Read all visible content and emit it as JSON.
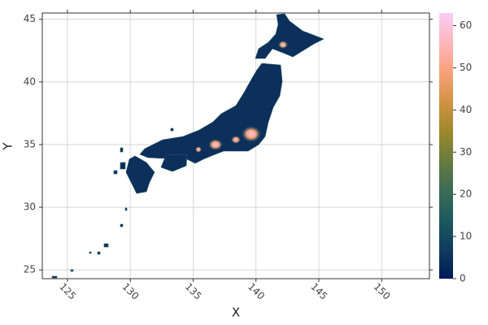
{
  "chart_data": {
    "type": "heatmap",
    "xlabel": "X",
    "ylabel": "Y",
    "xlim": [
      123,
      153.8
    ],
    "ylim": [
      24.3,
      45.5
    ],
    "xticks": [
      125,
      130,
      135,
      140,
      145,
      150
    ],
    "yticks": [
      25,
      30,
      35,
      40,
      45
    ],
    "grid": true,
    "colorbar": {
      "clim": [
        0,
        63
      ],
      "ticks": [
        0,
        10,
        20,
        30,
        40,
        50,
        60
      ],
      "colors": [
        "#011959",
        "#0f3d5e",
        "#1d5a5f",
        "#3c6d56",
        "#687b3e",
        "#9d892b",
        "#d29343",
        "#f8a17b",
        "#fdb7bc",
        "#f9ccf9"
      ]
    }
  }
}
